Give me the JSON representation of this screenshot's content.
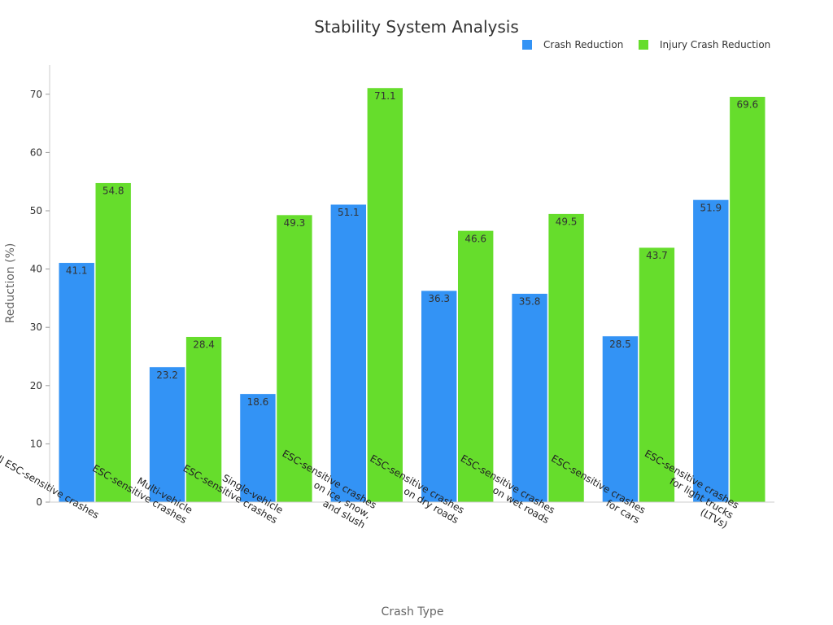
{
  "chart_data": {
    "type": "bar",
    "title": "Stability System Analysis",
    "xlabel": "Crash Type",
    "ylabel": "Reduction (%)",
    "ylim": [
      0,
      75
    ],
    "yticks": [
      0,
      10,
      20,
      30,
      40,
      50,
      60,
      70
    ],
    "grid": false,
    "legend_position": "top-right",
    "categories": [
      [
        "All ESC-sensitive crashes"
      ],
      [
        "Multi-vehicle",
        "ESC-sensitive crashes"
      ],
      [
        "Single-vehicle",
        "ESC-sensitive crashes"
      ],
      [
        "ESC-sensitive crashes",
        "on ice, snow,",
        "and slush"
      ],
      [
        "ESC-sensitive crashes",
        "on dry roads"
      ],
      [
        "ESC-sensitive crashes",
        "on wet roads"
      ],
      [
        "ESC-sensitive crashes",
        "for cars"
      ],
      [
        "ESC-sensitive crashes",
        "for light trucks",
        "(LTVs)"
      ]
    ],
    "series": [
      {
        "name": "Crash Reduction",
        "color": "#3393f5",
        "values": [
          41.1,
          23.2,
          18.6,
          51.1,
          36.3,
          35.8,
          28.5,
          51.9
        ]
      },
      {
        "name": "Injury Crash Reduction",
        "color": "#66dd2c",
        "values": [
          54.8,
          28.4,
          49.3,
          71.1,
          46.6,
          49.5,
          43.7,
          69.6
        ]
      }
    ]
  }
}
